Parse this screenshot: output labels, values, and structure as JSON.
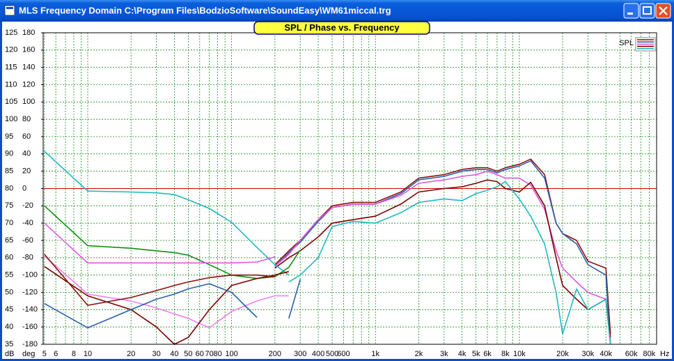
{
  "window_title": "MLS Frequency Domain  C:\\Program Files\\BodzioSoftware\\SoundEasy\\WM61miccal.trg",
  "chart_data": {
    "type": "line",
    "title": "SPL / Phase vs. Frequency",
    "x_unit": "Hz",
    "y_unit": "dB",
    "y2_unit": "deg",
    "xlog": true,
    "grid": true,
    "xlim": [
      4.9,
      90000
    ],
    "ylim": [
      35,
      125
    ],
    "y2lim": [
      -180,
      180
    ],
    "yticks": [
      35,
      40,
      45,
      50,
      55,
      60,
      65,
      70,
      75,
      80,
      85,
      90,
      95,
      100,
      105,
      110,
      115,
      120,
      125
    ],
    "y2ticks": [
      -180,
      -160,
      -140,
      -120,
      -100,
      -80,
      -60,
      -40,
      -20,
      0,
      20,
      40,
      60,
      80,
      100,
      120,
      140,
      160,
      180
    ],
    "xticks": [
      5,
      6,
      8,
      10,
      20,
      30,
      40,
      50,
      60,
      70,
      80,
      100,
      200,
      300,
      400,
      500,
      600,
      {
        "value": 1000,
        "label": "1k"
      },
      {
        "value": 2000,
        "label": "2k"
      },
      {
        "value": 3000,
        "label": "3k"
      },
      {
        "value": 4000,
        "label": "4k"
      },
      {
        "value": 5000,
        "label": "5k"
      },
      {
        "value": 6000,
        "label": "6k"
      },
      {
        "value": 8000,
        "label": "8k"
      },
      {
        "value": 10000,
        "label": "10k"
      },
      {
        "value": 20000,
        "label": "20k"
      },
      {
        "value": 30000,
        "label": "30k"
      },
      {
        "value": 40000,
        "label": "40k"
      },
      {
        "value": 60000,
        "label": "60k"
      },
      {
        "value": 80000,
        "label": "80k"
      }
    ],
    "x_minor_ticks": [
      7,
      9,
      90,
      700,
      800,
      900,
      7000,
      9000,
      50000,
      70000,
      90000
    ],
    "reference_line": {
      "value": 0,
      "axis": "y2",
      "color": "#d00000"
    },
    "legend": {
      "label": "SPL",
      "corner": "top-right"
    },
    "x": [
      5,
      10,
      20,
      30,
      40,
      50,
      70,
      100,
      150,
      200,
      250,
      300,
      400,
      500,
      700,
      1000,
      1500,
      2000,
      3000,
      4000,
      5000,
      6000,
      7000,
      8000,
      10000,
      12000,
      15000,
      18000,
      20000,
      25000,
      30000,
      40000,
      43000
    ],
    "series": [
      {
        "color": "#8a1010",
        "values": [
          null,
          null,
          null,
          null,
          null,
          null,
          null,
          null,
          null,
          58,
          62,
          65,
          71,
          75,
          76,
          76,
          79,
          83,
          84,
          85.5,
          86,
          86,
          85,
          86,
          87,
          88.5,
          84,
          70,
          67,
          65,
          59,
          57,
          38
        ]
      },
      {
        "color": "#2a5fa8",
        "values": [
          null,
          null,
          null,
          null,
          null,
          null,
          null,
          null,
          null,
          57.5,
          61.5,
          64.5,
          70.5,
          74.5,
          75.5,
          75.5,
          78.5,
          82.5,
          83.5,
          85,
          85.5,
          85.5,
          84.5,
          85.5,
          86.5,
          88,
          83,
          70,
          67,
          64,
          58,
          55,
          35
        ]
      },
      {
        "color": "#e055e0",
        "values": [
          null,
          null,
          null,
          null,
          null,
          null,
          null,
          null,
          null,
          57.5,
          61,
          65,
          71,
          74.5,
          75.5,
          75.5,
          78,
          81.5,
          82.5,
          83.5,
          84,
          85,
          84,
          83,
          83,
          81,
          74,
          62,
          57,
          53,
          50,
          48,
          35
        ]
      },
      {
        "color": "#7a0000",
        "values": [
          null,
          null,
          null,
          null,
          null,
          null,
          null,
          null,
          null,
          57,
          60,
          62,
          66,
          70,
          71,
          72,
          75.5,
          79,
          80,
          80.5,
          81.5,
          82.5,
          82,
          80,
          79,
          81.8,
          75,
          60,
          52,
          48,
          45,
          48,
          37
        ]
      },
      {
        "color": "#20b8c0",
        "values": [
          null,
          null,
          null,
          null,
          null,
          null,
          null,
          null,
          null,
          null,
          53,
          55,
          60,
          69,
          70.5,
          70,
          73,
          76,
          77,
          76.5,
          78.5,
          79.5,
          80.5,
          82,
          77,
          72,
          64,
          50,
          38,
          51,
          45,
          48,
          35
        ]
      },
      {
        "color": "#20b8c0",
        "axis": "y2",
        "values": [
          43,
          -3,
          -4,
          -5,
          -7,
          -13,
          -23,
          -39,
          -68,
          -88,
          -100,
          null,
          null,
          null,
          null,
          null,
          null,
          null,
          null,
          null,
          null,
          null,
          null,
          null,
          null,
          null,
          null,
          null,
          null,
          null,
          null,
          null,
          null
        ]
      },
      {
        "color": "#109010",
        "axis": "y2",
        "values": [
          -20,
          -66,
          -69,
          -72,
          -74,
          -77,
          -88,
          -100,
          -104,
          -102,
          -91,
          -71,
          null,
          null,
          null,
          null,
          null,
          null,
          null,
          null,
          null,
          null,
          null,
          null,
          null,
          null,
          null,
          null,
          null,
          null,
          null,
          null,
          null
        ]
      },
      {
        "color": "#e055e0",
        "axis": "y2",
        "values": [
          -40,
          -86,
          -86,
          -86,
          -86,
          -86,
          -86,
          -86,
          -85,
          -79,
          null,
          null,
          null,
          null,
          null,
          null,
          null,
          null,
          null,
          null,
          null,
          null,
          null,
          null,
          null,
          null,
          null,
          null,
          null,
          null,
          null,
          null,
          null
        ]
      },
      {
        "color": "#ee80ee",
        "axis": "y2",
        "values": [
          -78,
          -122,
          -130,
          -138,
          -145,
          -150,
          -161,
          -142,
          -130,
          -124,
          -124,
          null,
          null,
          null,
          null,
          null,
          null,
          null,
          null,
          null,
          null,
          null,
          null,
          null,
          null,
          null,
          null,
          null,
          null,
          null,
          null,
          null,
          null
        ]
      },
      {
        "color": "#7a0000",
        "axis": "y2",
        "values": [
          -90,
          -124,
          -140,
          -160,
          -180,
          -172,
          -140,
          -112,
          -104,
          -100,
          -96,
          null,
          null,
          null,
          null,
          null,
          null,
          null,
          null,
          null,
          null,
          null,
          null,
          null,
          null,
          null,
          null,
          null,
          null,
          null,
          null,
          null,
          null
        ]
      },
      {
        "color": "#8a1010",
        "axis": "y2",
        "values": [
          -76,
          -135,
          -126,
          -118,
          -112,
          -108,
          -103,
          -100,
          -100,
          -102,
          null,
          null,
          null,
          null,
          null,
          null,
          null,
          null,
          null,
          null,
          null,
          null,
          null,
          null,
          null,
          null,
          null,
          null,
          null,
          null,
          null,
          null,
          null
        ]
      },
      {
        "color": "#2a5fa8",
        "axis": "y2",
        "values": [
          -133,
          -161,
          -140,
          -128,
          -122,
          -116,
          -110,
          -120,
          -149,
          null,
          -150,
          -105,
          null,
          null,
          null,
          null,
          null,
          null,
          null,
          null,
          null,
          null,
          null,
          null,
          null,
          null,
          null,
          null,
          null,
          null,
          null,
          null,
          null
        ]
      }
    ]
  }
}
